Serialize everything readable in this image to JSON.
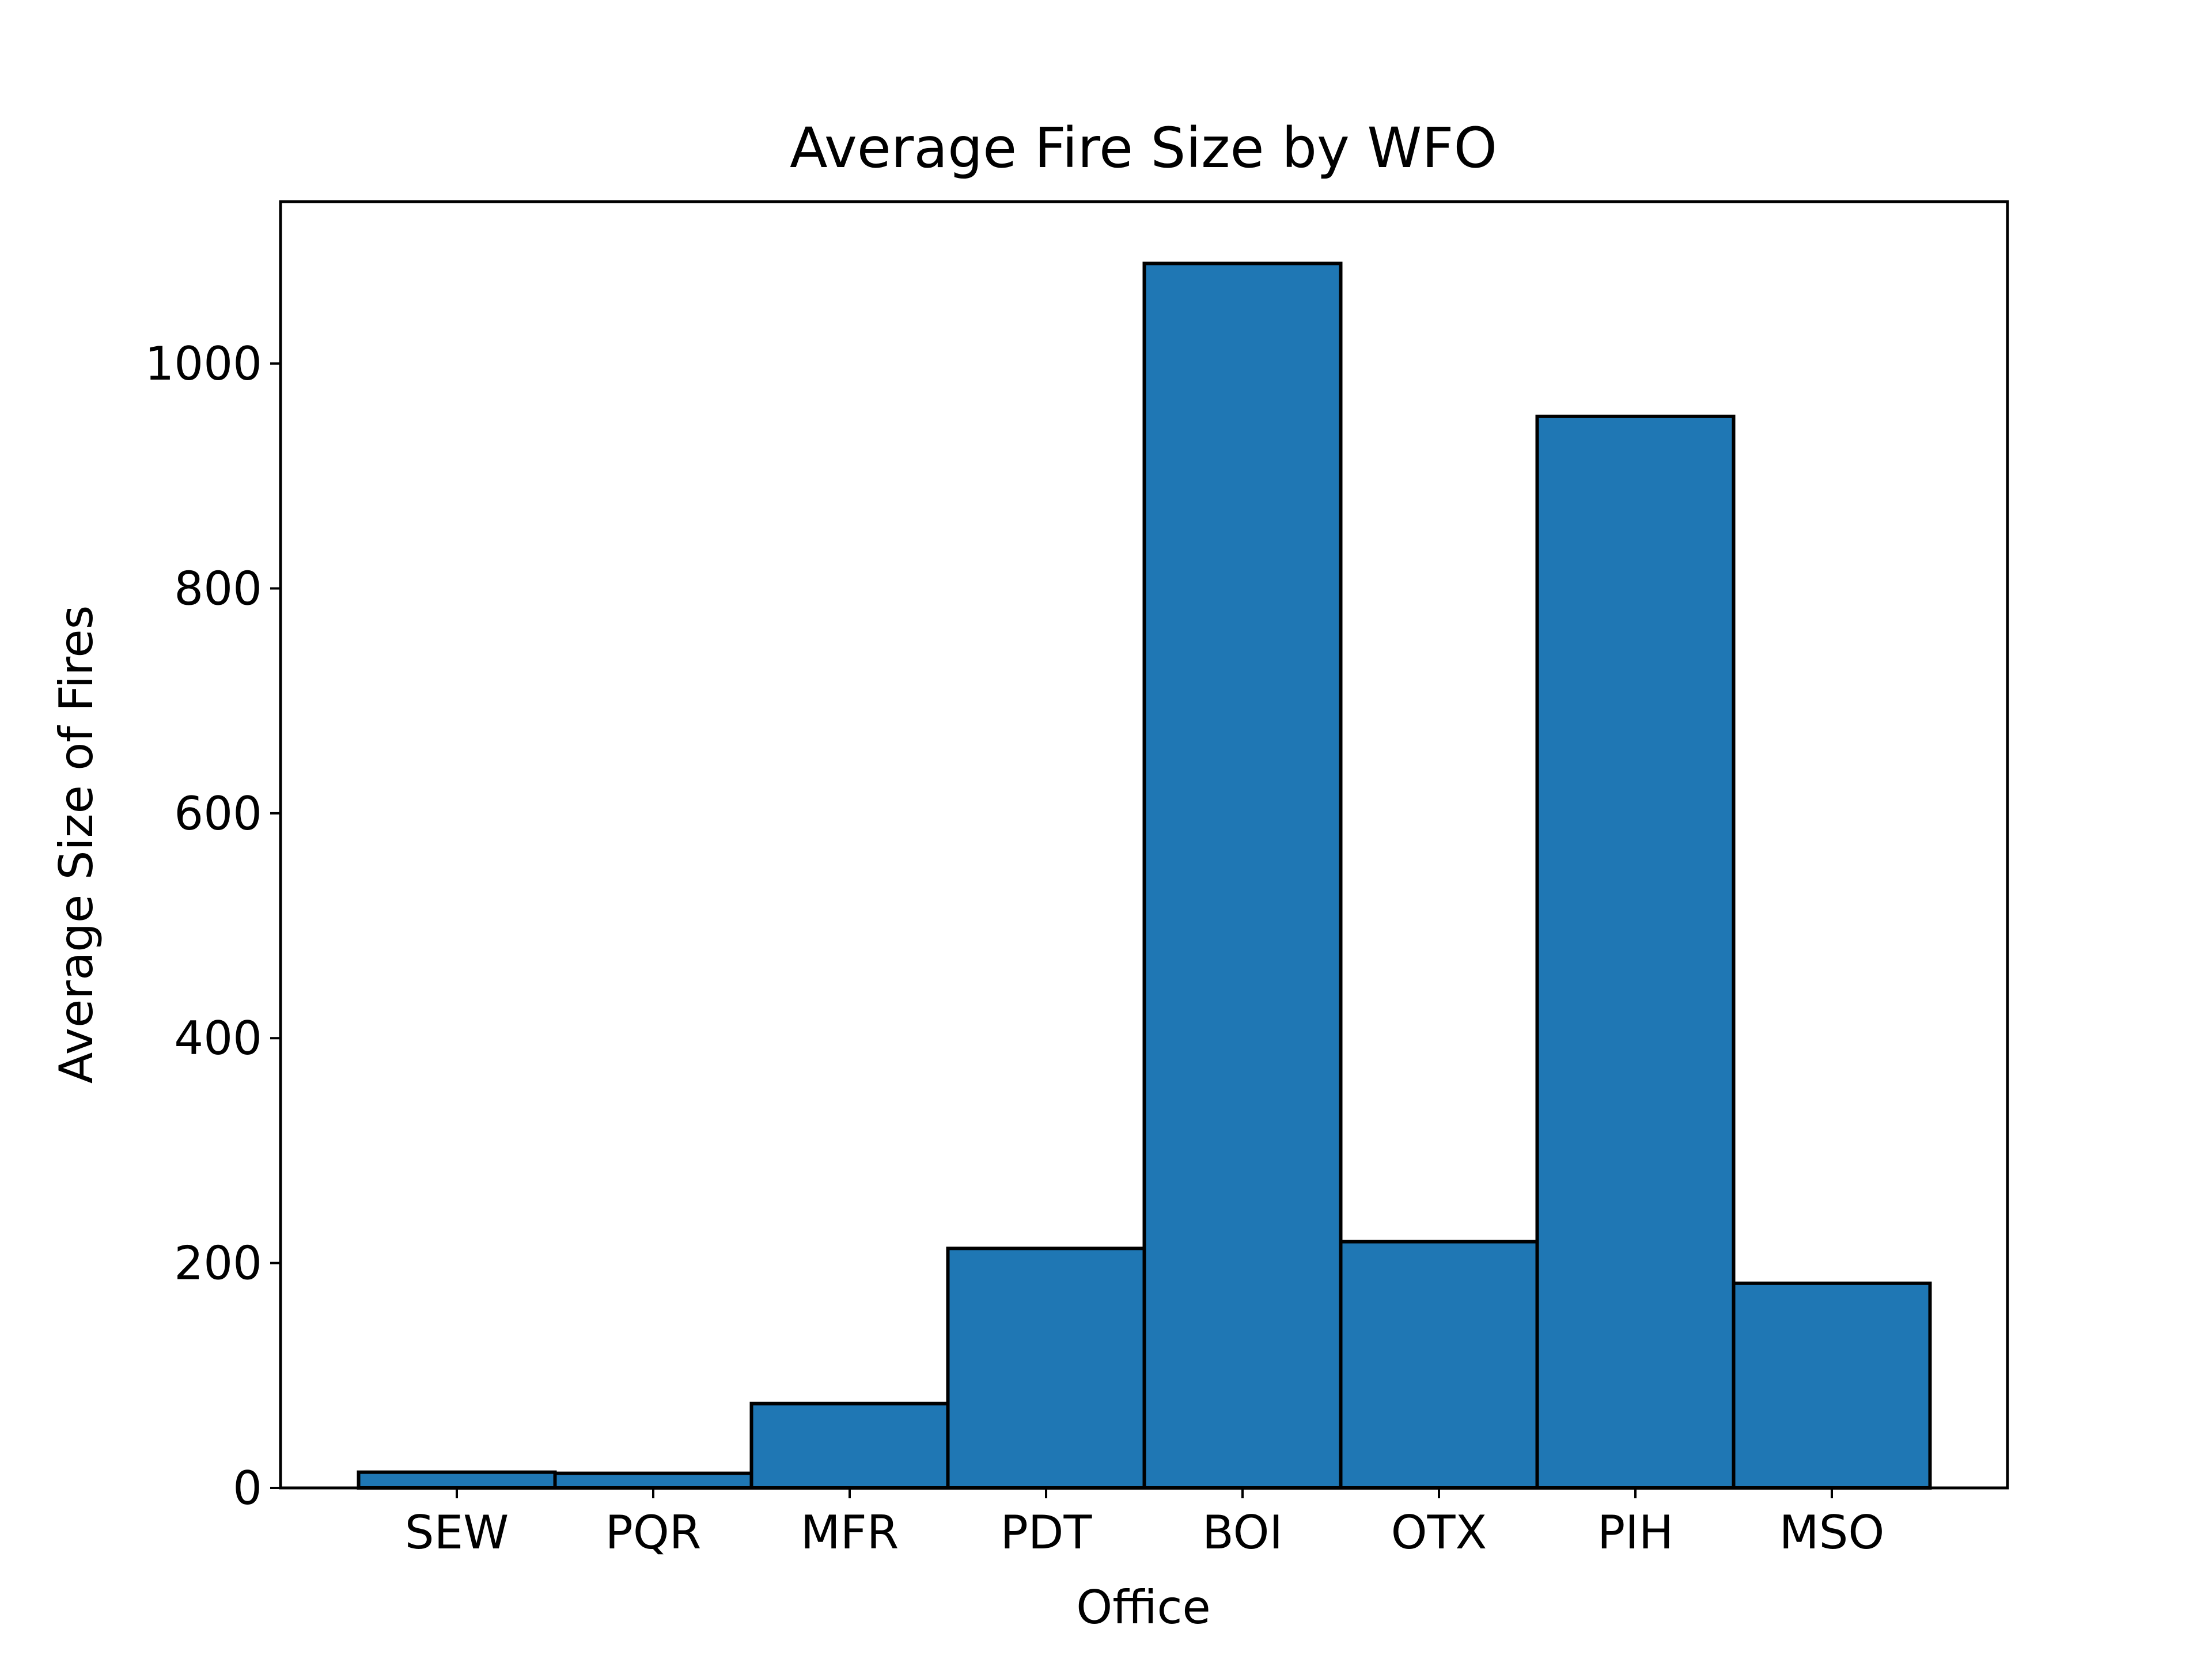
{
  "chart_data": {
    "type": "bar",
    "title": "Average Fire Size by WFO",
    "xlabel": "Office",
    "ylabel": "Average Size of Fires",
    "categories": [
      "SEW",
      "PQR",
      "MFR",
      "PDT",
      "BOI",
      "OTX",
      "PIH",
      "MSO"
    ],
    "values": [
      14,
      13,
      75,
      213,
      1089,
      219,
      953,
      182
    ],
    "ylim": [
      0,
      1144
    ],
    "yticks": [
      0,
      200,
      400,
      600,
      800,
      1000
    ],
    "grid": false,
    "legend": "none",
    "bar_color": "#1f77b4",
    "edge_color": "#000000"
  }
}
